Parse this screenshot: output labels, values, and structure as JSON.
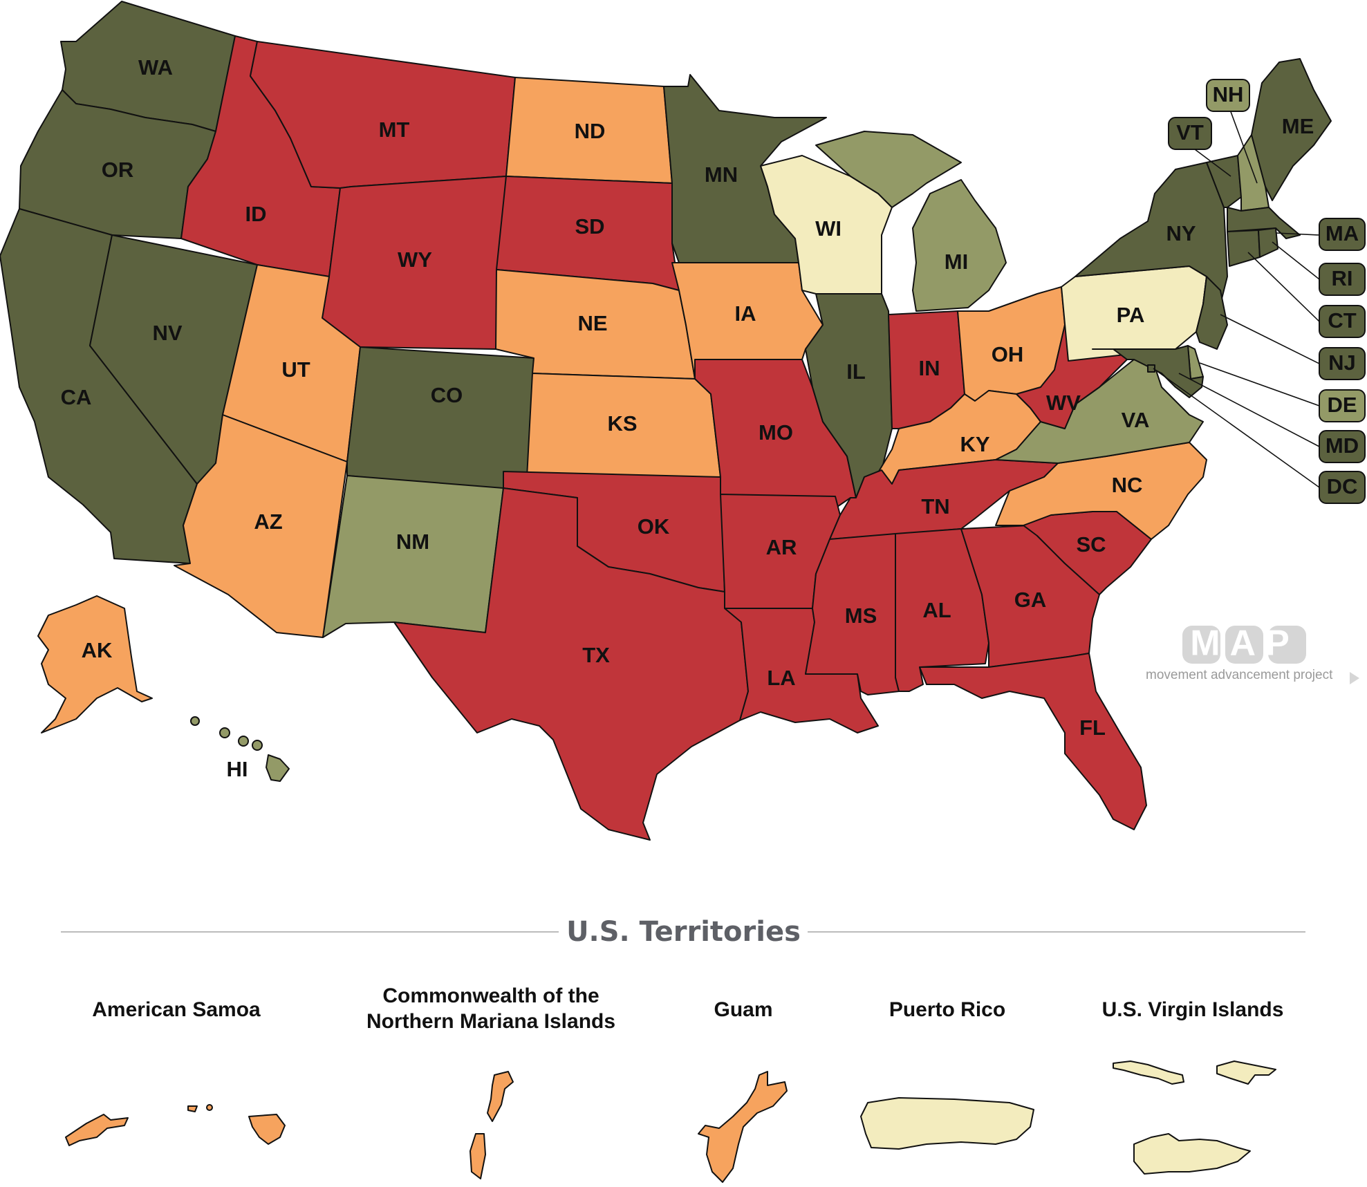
{
  "colors": {
    "darkGreen": "#5c623f",
    "lightGreen": "#939a67",
    "cream": "#f3ecbe",
    "orange": "#f6a35e",
    "red": "#c0353a",
    "heading": "#5e6066",
    "logo": "#d6d6d6"
  },
  "states": {
    "WA": {
      "label": "WA",
      "category": "darkGreen"
    },
    "OR": {
      "label": "OR",
      "category": "darkGreen"
    },
    "CA": {
      "label": "CA",
      "category": "darkGreen"
    },
    "NV": {
      "label": "NV",
      "category": "darkGreen"
    },
    "ID": {
      "label": "ID",
      "category": "red"
    },
    "MT": {
      "label": "MT",
      "category": "red"
    },
    "WY": {
      "label": "WY",
      "category": "red"
    },
    "UT": {
      "label": "UT",
      "category": "orange"
    },
    "AZ": {
      "label": "AZ",
      "category": "orange"
    },
    "CO": {
      "label": "CO",
      "category": "darkGreen"
    },
    "NM": {
      "label": "NM",
      "category": "lightGreen"
    },
    "ND": {
      "label": "ND",
      "category": "orange"
    },
    "SD": {
      "label": "SD",
      "category": "red"
    },
    "NE": {
      "label": "NE",
      "category": "orange"
    },
    "KS": {
      "label": "KS",
      "category": "orange"
    },
    "OK": {
      "label": "OK",
      "category": "red"
    },
    "TX": {
      "label": "TX",
      "category": "red"
    },
    "MN": {
      "label": "MN",
      "category": "darkGreen"
    },
    "IA": {
      "label": "IA",
      "category": "orange"
    },
    "MO": {
      "label": "MO",
      "category": "red"
    },
    "AR": {
      "label": "AR",
      "category": "red"
    },
    "LA": {
      "label": "LA",
      "category": "red"
    },
    "WI": {
      "label": "WI",
      "category": "cream"
    },
    "IL": {
      "label": "IL",
      "category": "darkGreen"
    },
    "MI": {
      "label": "MI",
      "category": "lightGreen"
    },
    "IN": {
      "label": "IN",
      "category": "red"
    },
    "OH": {
      "label": "OH",
      "category": "orange"
    },
    "KY": {
      "label": "KY",
      "category": "orange"
    },
    "TN": {
      "label": "TN",
      "category": "red"
    },
    "MS": {
      "label": "MS",
      "category": "red"
    },
    "AL": {
      "label": "AL",
      "category": "red"
    },
    "GA": {
      "label": "GA",
      "category": "red"
    },
    "FL": {
      "label": "FL",
      "category": "red"
    },
    "SC": {
      "label": "SC",
      "category": "red"
    },
    "NC": {
      "label": "NC",
      "category": "orange"
    },
    "VA": {
      "label": "VA",
      "category": "lightGreen"
    },
    "WV": {
      "label": "WV",
      "category": "red"
    },
    "PA": {
      "label": "PA",
      "category": "cream"
    },
    "NY": {
      "label": "NY",
      "category": "darkGreen"
    },
    "VT": {
      "label": "VT",
      "category": "darkGreen"
    },
    "NH": {
      "label": "NH",
      "category": "lightGreen"
    },
    "ME": {
      "label": "ME",
      "category": "darkGreen"
    },
    "MA": {
      "label": "MA",
      "category": "darkGreen"
    },
    "RI": {
      "label": "RI",
      "category": "darkGreen"
    },
    "CT": {
      "label": "CT",
      "category": "darkGreen"
    },
    "NJ": {
      "label": "NJ",
      "category": "darkGreen"
    },
    "DE": {
      "label": "DE",
      "category": "lightGreen"
    },
    "MD": {
      "label": "MD",
      "category": "darkGreen"
    },
    "DC": {
      "label": "DC",
      "category": "darkGreen"
    },
    "AK": {
      "label": "AK",
      "category": "orange"
    },
    "HI": {
      "label": "HI",
      "category": "lightGreen"
    }
  },
  "territories_heading": "U.S. Territories",
  "territories": [
    {
      "id": "AS",
      "name": "American Samoa",
      "category": "orange"
    },
    {
      "id": "MP",
      "name": "Commonwealth of the Northern Mariana Islands",
      "name_line1": "Commonwealth of the",
      "name_line2": "Northern Mariana Islands",
      "category": "orange"
    },
    {
      "id": "GU",
      "name": "Guam",
      "category": "orange"
    },
    {
      "id": "PR",
      "name": "Puerto Rico",
      "category": "cream"
    },
    {
      "id": "VI",
      "name": "U.S. Virgin Islands",
      "category": "cream"
    }
  ],
  "logo": {
    "mark": "MAP",
    "tagline": "movement advancement project"
  }
}
